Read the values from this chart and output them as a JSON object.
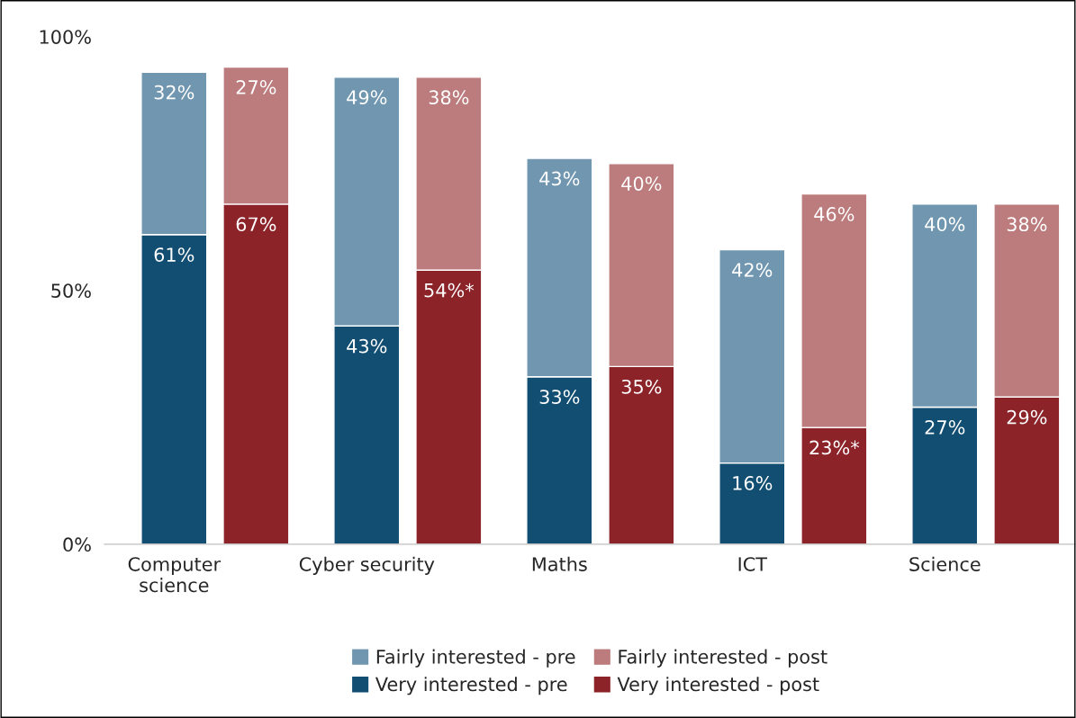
{
  "chart_data": {
    "type": "bar",
    "stacked": true,
    "categories": [
      "Computer\nscience",
      null,
      "Cyber security",
      null,
      "Maths",
      null,
      "ICT",
      null,
      "Science",
      null
    ],
    "series": [
      {
        "name": "Very interested - pre",
        "color": "#124e72",
        "values": [
          61,
          null,
          43,
          null,
          33,
          null,
          16,
          null,
          27,
          null
        ],
        "value_labels": [
          "61%",
          null,
          "43%",
          null,
          "33%",
          null,
          "16%",
          null,
          "27%",
          null
        ]
      },
      {
        "name": "Fairly interested - pre",
        "color": "#7096b0",
        "values": [
          32,
          null,
          49,
          null,
          43,
          null,
          42,
          null,
          40,
          null
        ],
        "value_labels": [
          "32%",
          null,
          "49%",
          null,
          "43%",
          null,
          "42%",
          null,
          "40%",
          null
        ]
      },
      {
        "name": "Very interested - post",
        "color": "#8b2329",
        "values": [
          null,
          67,
          null,
          54,
          null,
          35,
          null,
          23,
          null,
          29
        ],
        "value_labels": [
          null,
          "67%",
          null,
          "54%*",
          null,
          "35%",
          null,
          "23%*",
          null,
          "29%"
        ]
      },
      {
        "name": "Fairly interested - post",
        "color": "#bc7b7c",
        "values": [
          null,
          27,
          null,
          38,
          null,
          40,
          null,
          46,
          null,
          38
        ],
        "value_labels": [
          null,
          "27%",
          null,
          "38%",
          null,
          "40%",
          null,
          "46%",
          null,
          "38%"
        ]
      }
    ],
    "ylim": [
      0,
      100
    ],
    "yticks": [
      {
        "value": 0,
        "label": "0%"
      },
      {
        "value": 50,
        "label": "50%"
      },
      {
        "value": 100,
        "label": "100%"
      }
    ],
    "grid": false,
    "legend": "bottom"
  }
}
